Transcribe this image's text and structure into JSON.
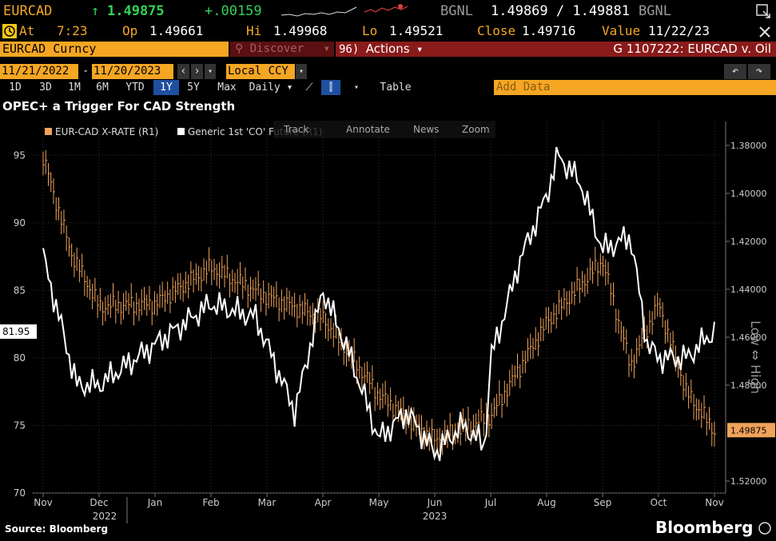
{
  "header": {
    "ticker": "EURCAD",
    "arrow": "↑",
    "last": "1.49875",
    "change": "+.00159",
    "source_left": "BGNL",
    "bid_ask": "1.49869 / 1.49881",
    "source_right": "BGNL",
    "at_label": "At",
    "at_value": "7:23",
    "op_label": "Op",
    "op_value": "1.49661",
    "hi_label": "Hi",
    "hi_value": "1.49968",
    "lo_label": "Lo",
    "lo_value": "1.49521",
    "close_label": "Close",
    "close_value": "1.49716",
    "value_label": "Value",
    "value_date": "11/22/23"
  },
  "toolbar": {
    "security": "EURCAD Curncy",
    "discover": "Discover",
    "actions_code": "96",
    "actions_label": "Actions",
    "chart_code": "G 1107222: EURCAD v. Oil",
    "start_date": "11/21/2022",
    "date_sep": "-",
    "end_date": "11/20/2023",
    "currency": "Local CCY",
    "periods": [
      "1D",
      "3D",
      "1M",
      "6M",
      "YTD",
      "1Y",
      "5Y",
      "Max"
    ],
    "active_period": "1Y",
    "frequency": "Daily",
    "table_label": "Table",
    "add_data_placeholder": "Add Data"
  },
  "chart_tools": {
    "track": "Track",
    "annotate": "Annotate",
    "news": "News",
    "zoom": "Zoom"
  },
  "footer": {
    "source": "Source: Bloomberg",
    "brand": "Bloomberg"
  },
  "colors": {
    "accent": "#f5a623",
    "eurcad_series": "#f0a35a",
    "oil_series": "#ffffff",
    "toolbar_red": "#8b1a1a"
  },
  "chart_data": {
    "type": "line",
    "title": "OPEC+ a Trigger For CAD Strength",
    "x_ticks": [
      "Nov",
      "Dec",
      "Jan",
      "Feb",
      "Mar",
      "Apr",
      "May",
      "Jun",
      "Jul",
      "Aug",
      "Sep",
      "Oct",
      "Nov"
    ],
    "x_years": [
      "2022",
      "2023"
    ],
    "left_axis": {
      "ylim": [
        70,
        97.5
      ],
      "ticks": [
        "95",
        "90",
        "85",
        "80",
        "75",
        "70"
      ],
      "current_label": "81.95"
    },
    "right_axis": {
      "label": "Low ⇔ High",
      "reversed": true,
      "ylim": [
        1.37,
        1.525
      ],
      "ticks": [
        "1.38000",
        "1.40000",
        "1.42000",
        "1.44000",
        "1.46000",
        "1.48000",
        "1.52000"
      ],
      "current_label": "1.49875"
    },
    "series": [
      {
        "name": "EUR-CAD X-RATE (R1)",
        "axis": "right",
        "x": [
          0,
          0.5,
          1,
          2,
          3,
          4,
          5,
          6,
          7,
          8,
          9,
          10,
          10.5,
          11,
          11.5,
          12
        ],
        "values": [
          1.385,
          1.425,
          1.447,
          1.446,
          1.431,
          1.443,
          1.452,
          1.484,
          1.503,
          1.493,
          1.454,
          1.428,
          1.472,
          1.446,
          1.483,
          1.499
        ]
      },
      {
        "name": "Generic 1st 'CO' Future (R1)",
        "axis": "left",
        "x": [
          0,
          0.6,
          1,
          2,
          3,
          3.8,
          4.5,
          5,
          5.5,
          6,
          6.5,
          7,
          7.5,
          7.9,
          8,
          8.3,
          8.5,
          9,
          9.2,
          9.6,
          10,
          10.5,
          10.8,
          11,
          11.5,
          12
        ],
        "values": [
          87.5,
          78,
          78,
          81,
          84,
          83,
          76,
          85,
          80,
          74,
          76,
          73,
          75,
          73.5,
          80,
          84,
          87,
          92,
          95,
          93,
          88,
          89,
          81,
          80,
          80,
          82
        ]
      }
    ]
  }
}
